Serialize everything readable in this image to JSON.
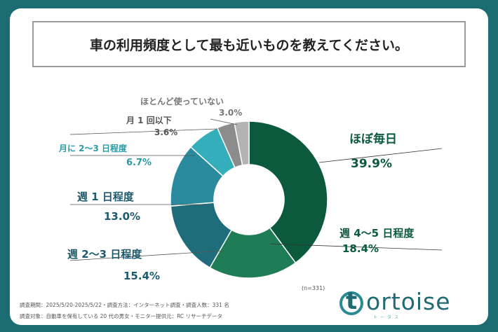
{
  "title": "車の利用頻度として最も近いものを教えてください。",
  "n_label": "(n=331)",
  "footer": {
    "line1": "調査期間：2025/5/20-2025/5/22・調査方法：インターネット調査・調査人数：331 名",
    "line2": "調査対象：自動車を保有している 20 代の男女・モニター提供元：RC リサーチデータ"
  },
  "logo": {
    "word": "ortoise",
    "mark": "t",
    "sub": "トータス"
  },
  "colors": {
    "background": "#1a6b72",
    "slices": [
      "#0b5a3e",
      "#1f7d55",
      "#1f6c7a",
      "#2b8b9e",
      "#35aebb",
      "#8c8c8c",
      "#b3b3b3"
    ]
  },
  "chart_data": {
    "type": "pie",
    "donut": true,
    "categories": [
      "ほぼ毎日",
      "週 4〜5 日程度",
      "週 2〜3 日程度",
      "週 1 日程度",
      "月に 2〜3 日程度",
      "月 1 回以下",
      "ほとんど使っていない"
    ],
    "values": [
      39.9,
      18.4,
      15.4,
      13.0,
      6.7,
      3.6,
      3.0
    ],
    "value_labels": [
      "39.9%",
      "18.4%",
      "15.4%",
      "13.0%",
      "6.7%",
      "3.6%",
      "3.0%"
    ]
  }
}
